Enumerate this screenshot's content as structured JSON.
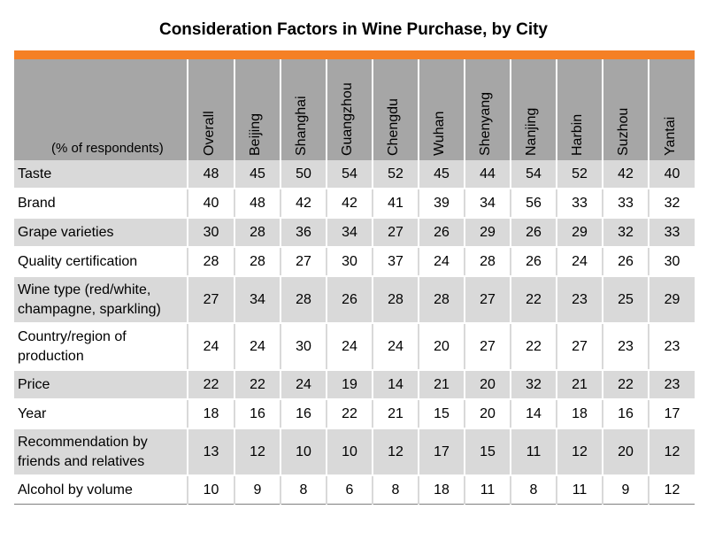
{
  "title": "Consideration Factors in Wine Purchase, by City",
  "unit_label": "(% of respondents)",
  "colors": {
    "accent_bar": "#f58025",
    "header_fill": "#a6a6a6",
    "row_shade": "#d9d9d9"
  },
  "chart_data": {
    "type": "table",
    "title": "Consideration Factors in Wine Purchase, by City",
    "unit": "(% of respondents)",
    "columns": [
      "Overall",
      "Beijing",
      "Shanghai",
      "Guangzhou",
      "Chengdu",
      "Wuhan",
      "Shenyang",
      "Nanjing",
      "Harbin",
      "Suzhou",
      "Yantai"
    ],
    "rows": [
      {
        "factor": "Taste",
        "values": [
          48,
          45,
          50,
          54,
          52,
          45,
          44,
          54,
          52,
          42,
          40
        ]
      },
      {
        "factor": "Brand",
        "values": [
          40,
          48,
          42,
          42,
          41,
          39,
          34,
          56,
          33,
          33,
          32
        ]
      },
      {
        "factor": "Grape varieties",
        "values": [
          30,
          28,
          36,
          34,
          27,
          26,
          29,
          26,
          29,
          32,
          33
        ]
      },
      {
        "factor": "Quality certification",
        "values": [
          28,
          28,
          27,
          30,
          37,
          24,
          28,
          26,
          24,
          26,
          30
        ]
      },
      {
        "factor": "Wine type (red/white, champagne, sparkling)",
        "values": [
          27,
          34,
          28,
          26,
          28,
          28,
          27,
          22,
          23,
          25,
          29
        ]
      },
      {
        "factor": "Country/region of production",
        "values": [
          24,
          24,
          30,
          24,
          24,
          20,
          27,
          22,
          27,
          23,
          23
        ]
      },
      {
        "factor": "Price",
        "values": [
          22,
          22,
          24,
          19,
          14,
          21,
          20,
          32,
          21,
          22,
          23
        ]
      },
      {
        "factor": "Year",
        "values": [
          18,
          16,
          16,
          22,
          21,
          15,
          20,
          14,
          18,
          16,
          17
        ]
      },
      {
        "factor": "Recommendation by friends and relatives",
        "values": [
          13,
          12,
          10,
          10,
          12,
          17,
          15,
          11,
          12,
          20,
          12
        ]
      },
      {
        "factor": "Alcohol by volume",
        "values": [
          10,
          9,
          8,
          6,
          8,
          18,
          11,
          8,
          11,
          9,
          12
        ]
      }
    ]
  }
}
